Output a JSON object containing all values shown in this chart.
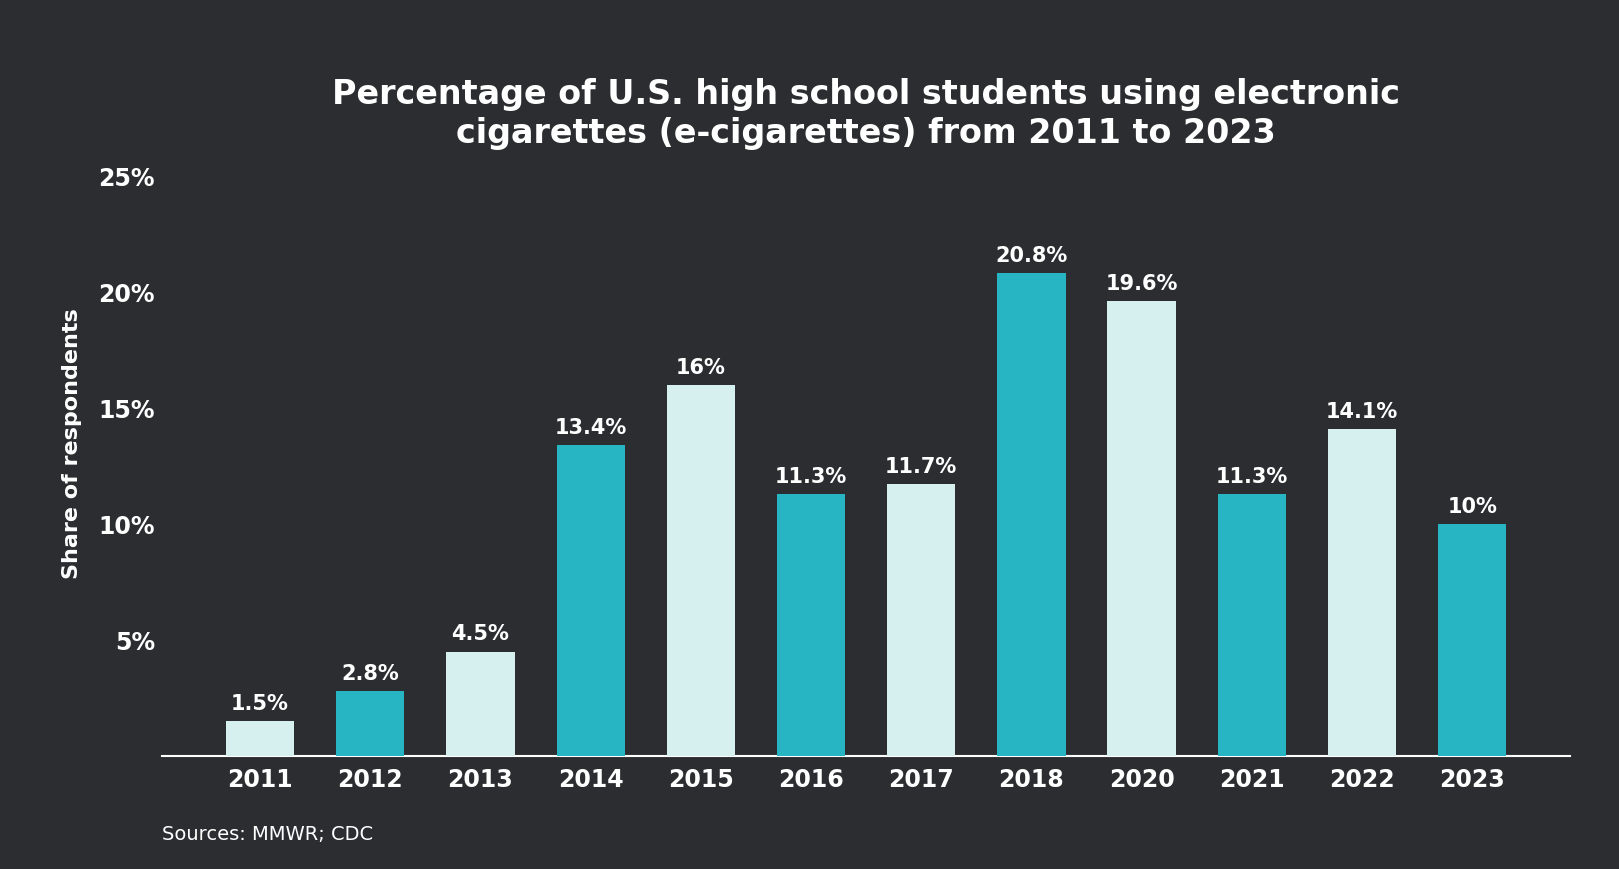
{
  "years": [
    "2011",
    "2012",
    "2013",
    "2014",
    "2015",
    "2016",
    "2017",
    "2018",
    "2020",
    "2021",
    "2022",
    "2023"
  ],
  "values": [
    1.5,
    2.8,
    4.5,
    13.4,
    16.0,
    11.3,
    11.7,
    20.8,
    19.6,
    11.3,
    14.1,
    10.0
  ],
  "labels": [
    "1.5%",
    "2.8%",
    "4.5%",
    "13.4%",
    "16%",
    "11.3%",
    "11.7%",
    "20.8%",
    "19.6%",
    "11.3%",
    "14.1%",
    "10%"
  ],
  "bar_colors": [
    "#d6f0f0",
    "#27b5c4",
    "#d6f0f0",
    "#27b5c4",
    "#d6f0f0",
    "#27b5c4",
    "#d6f0f0",
    "#27b5c4",
    "#d6f0f0",
    "#27b5c4",
    "#d6f0f0",
    "#27b5c4"
  ],
  "title": "Percentage of U.S. high school students using electronic\ncigarettes (e-cigarettes) from 2011 to 2023",
  "ylabel": "Share of respondents",
  "yticks": [
    5,
    10,
    15,
    20,
    25
  ],
  "ytick_labels": [
    "5%",
    "10%",
    "15%",
    "20%",
    "25%"
  ],
  "ylim": [
    0,
    27
  ],
  "source_text": "Sources: MMWR; CDC",
  "background_color": "#2b2d30",
  "text_color": "#ffffff",
  "title_fontsize": 24,
  "label_fontsize": 15,
  "axis_fontsize": 17,
  "ylabel_fontsize": 16,
  "source_fontsize": 14
}
